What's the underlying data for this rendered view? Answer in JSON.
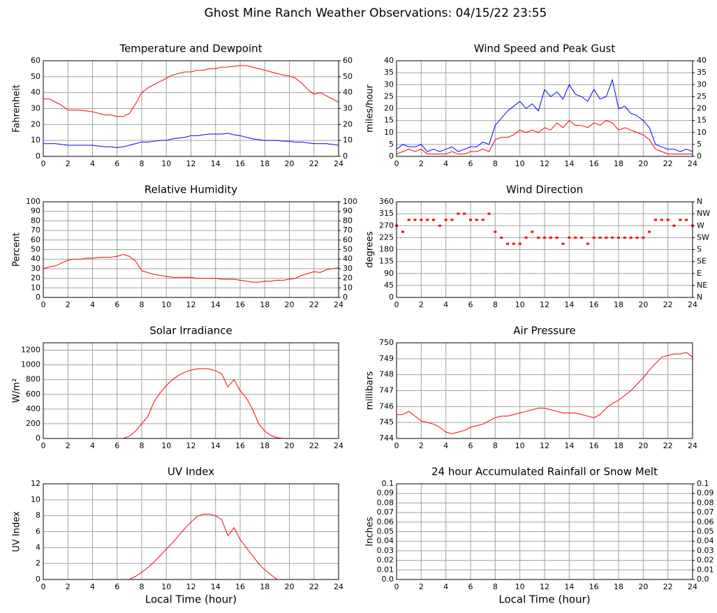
{
  "page_title": "Ghost Mine Ranch Weather Observations: 04/15/22 23:55",
  "chart_data": [
    {
      "type": "line",
      "title": "Temperature and Dewpoint",
      "ylabel": "Fahrenheit",
      "x": [
        0,
        0.5,
        1,
        1.5,
        2,
        2.5,
        3,
        3.5,
        4,
        4.5,
        5,
        5.5,
        6,
        6.5,
        7,
        7.5,
        8,
        8.5,
        9,
        9.5,
        10,
        10.5,
        11,
        11.5,
        12,
        12.5,
        13,
        13.5,
        14,
        14.5,
        15,
        15.5,
        16,
        16.5,
        17,
        17.5,
        18,
        18.5,
        19,
        19.5,
        20,
        20.5,
        21,
        21.5,
        22,
        22.5,
        23,
        23.5,
        24
      ],
      "xlim": [
        0,
        24
      ],
      "xticks": [
        0,
        2,
        4,
        6,
        8,
        10,
        12,
        14,
        16,
        18,
        20,
        22,
        24
      ],
      "ylim": [
        0,
        60
      ],
      "yticks": [
        0,
        10,
        20,
        30,
        40,
        50,
        60
      ],
      "y2lim": [
        0,
        60
      ],
      "y2ticks": [
        0,
        10,
        20,
        30,
        40,
        50,
        60
      ],
      "grid": true,
      "series": [
        {
          "color": "#ff0000",
          "values": [
            36,
            36,
            34,
            32,
            29,
            29,
            29,
            28.5,
            28,
            27,
            26,
            26,
            25,
            25,
            27,
            33,
            40,
            43,
            45,
            47,
            49,
            51,
            52,
            53,
            53,
            54,
            54,
            55,
            55,
            56,
            56,
            56.5,
            57,
            57,
            56,
            55,
            54,
            53,
            52,
            51,
            50.5,
            49,
            46,
            42,
            39,
            40,
            38,
            36,
            34
          ]
        },
        {
          "color": "#0000ff",
          "values": [
            8,
            8,
            8,
            7.5,
            7,
            7,
            7,
            7,
            7,
            6.5,
            6,
            6,
            5.5,
            6,
            7,
            8,
            9,
            9,
            9.5,
            10,
            10,
            11,
            11.5,
            12,
            13,
            13,
            13.5,
            14,
            14,
            14,
            14.5,
            13.5,
            13,
            12,
            11,
            10.5,
            10,
            10,
            10,
            9.5,
            9.5,
            9,
            9,
            8.5,
            8,
            8,
            8,
            7.5,
            7
          ]
        }
      ]
    },
    {
      "type": "line",
      "title": "Wind Speed and Peak Gust",
      "ylabel": "miles/hour",
      "x": [
        0,
        0.5,
        1,
        1.5,
        2,
        2.5,
        3,
        3.5,
        4,
        4.5,
        5,
        5.5,
        6,
        6.5,
        7,
        7.5,
        8,
        8.5,
        9,
        9.5,
        10,
        10.5,
        11,
        11.5,
        12,
        12.5,
        13,
        13.5,
        14,
        14.5,
        15,
        15.5,
        16,
        16.5,
        17,
        17.5,
        18,
        18.5,
        19,
        19.5,
        20,
        20.5,
        21,
        21.5,
        22,
        22.5,
        23,
        23.5,
        24
      ],
      "xlim": [
        0,
        24
      ],
      "xticks": [
        0,
        2,
        4,
        6,
        8,
        10,
        12,
        14,
        16,
        18,
        20,
        22,
        24
      ],
      "ylim": [
        0,
        40
      ],
      "yticks": [
        0,
        5,
        10,
        15,
        20,
        25,
        30,
        35,
        40
      ],
      "y2lim": [
        0,
        40
      ],
      "y2ticks": [
        0,
        5,
        10,
        15,
        20,
        25,
        30,
        35,
        40
      ],
      "grid": true,
      "series": [
        {
          "color": "#0000ff",
          "values": [
            3,
            5,
            4,
            4,
            5,
            2,
            3,
            2,
            3,
            4,
            2,
            3,
            4,
            4,
            6,
            5,
            13,
            16,
            19,
            21,
            23,
            20,
            22,
            19,
            28,
            25,
            27,
            24,
            30,
            26,
            25,
            23,
            28,
            24,
            25,
            32,
            20,
            21,
            18,
            17,
            15,
            12,
            5,
            4,
            3,
            3,
            2,
            3,
            2
          ]
        },
        {
          "color": "#ff0000",
          "values": [
            1,
            2,
            3,
            2,
            3,
            1,
            1,
            1,
            1,
            2,
            1,
            1,
            2,
            2,
            3,
            2,
            7,
            8,
            8,
            9,
            11,
            10,
            11,
            10,
            12,
            11,
            14,
            12,
            15,
            13,
            13,
            12,
            14,
            13,
            15,
            14,
            11,
            12,
            11,
            10,
            9,
            7,
            3,
            2,
            1,
            1,
            1,
            1,
            1
          ]
        }
      ]
    },
    {
      "type": "line",
      "title": "Relative Humidity",
      "ylabel": "Percent",
      "x": [
        0,
        0.5,
        1,
        1.5,
        2,
        2.5,
        3,
        3.5,
        4,
        4.5,
        5,
        5.5,
        6,
        6.5,
        7,
        7.5,
        8,
        8.5,
        9,
        9.5,
        10,
        10.5,
        11,
        11.5,
        12,
        12.5,
        13,
        13.5,
        14,
        14.5,
        15,
        15.5,
        16,
        16.5,
        17,
        17.5,
        18,
        18.5,
        19,
        19.5,
        20,
        20.5,
        21,
        21.5,
        22,
        22.5,
        23,
        23.5,
        24
      ],
      "xlim": [
        0,
        24
      ],
      "xticks": [
        0,
        2,
        4,
        6,
        8,
        10,
        12,
        14,
        16,
        18,
        20,
        22,
        24
      ],
      "ylim": [
        0,
        100
      ],
      "yticks": [
        0,
        10,
        20,
        30,
        40,
        50,
        60,
        70,
        80,
        90,
        100
      ],
      "y2lim": [
        0,
        100
      ],
      "y2ticks": [
        0,
        10,
        20,
        30,
        40,
        50,
        60,
        70,
        80,
        90,
        100
      ],
      "grid": true,
      "series": [
        {
          "color": "#ff0000",
          "values": [
            30,
            32,
            33,
            36,
            39,
            40,
            40,
            41,
            41,
            42,
            42,
            42,
            43,
            45,
            43,
            38,
            28,
            26,
            24,
            23,
            22,
            21,
            21,
            21,
            21,
            20,
            20,
            20,
            20,
            19,
            19,
            19,
            18,
            17,
            16,
            16,
            17,
            17,
            18,
            18,
            19,
            20,
            23,
            25,
            27,
            26,
            29,
            30,
            31
          ]
        }
      ]
    },
    {
      "type": "scatter",
      "title": "Wind Direction",
      "ylabel": "degrees",
      "x": [
        0,
        0.5,
        1,
        1.5,
        2,
        2.5,
        3,
        3.5,
        4,
        4.5,
        5,
        5.5,
        6,
        6.5,
        7,
        7.5,
        8,
        8.5,
        9,
        9.5,
        10,
        10.5,
        11,
        11.5,
        12,
        12.5,
        13,
        13.5,
        14,
        14.5,
        15,
        15.5,
        16,
        16.5,
        17,
        17.5,
        18,
        18.5,
        19,
        19.5,
        20,
        20.5,
        21,
        21.5,
        22,
        22.5,
        23,
        23.5,
        24
      ],
      "xlim": [
        0,
        24
      ],
      "xticks": [
        0,
        2,
        4,
        6,
        8,
        10,
        12,
        14,
        16,
        18,
        20,
        22,
        24
      ],
      "ylim": [
        0,
        360
      ],
      "yticks": [
        0,
        45,
        90,
        135,
        180,
        225,
        270,
        315,
        360
      ],
      "y2lim": [
        0,
        360
      ],
      "y2ticks": [
        {
          "value": 0,
          "label": "N"
        },
        {
          "value": 45,
          "label": "NE"
        },
        {
          "value": 90,
          "label": "E"
        },
        {
          "value": 135,
          "label": "SE"
        },
        {
          "value": 180,
          "label": "S"
        },
        {
          "value": 225,
          "label": "SW"
        },
        {
          "value": 270,
          "label": "W"
        },
        {
          "value": 315,
          "label": "NW"
        },
        {
          "value": 360,
          "label": "N"
        }
      ],
      "grid": true,
      "series": [
        {
          "color": "#ff0000",
          "values": [
            270,
            247,
            292,
            292,
            292,
            292,
            292,
            270,
            292,
            292,
            315,
            315,
            292,
            292,
            292,
            315,
            247,
            225,
            202,
            202,
            202,
            225,
            247,
            225,
            225,
            225,
            225,
            202,
            225,
            225,
            225,
            202,
            225,
            225,
            225,
            225,
            225,
            225,
            225,
            225,
            225,
            247,
            292,
            292,
            292,
            270,
            292,
            292,
            270
          ]
        }
      ]
    },
    {
      "type": "line",
      "title": "Solar Irradiance",
      "ylabel": "W/m²",
      "x": [
        0,
        0.5,
        1,
        1.5,
        2,
        2.5,
        3,
        3.5,
        4,
        4.5,
        5,
        5.5,
        6,
        6.5,
        7,
        7.5,
        8,
        8.5,
        9,
        9.5,
        10,
        10.5,
        11,
        11.5,
        12,
        12.5,
        13,
        13.5,
        14,
        14.5,
        15,
        15.5,
        16,
        16.5,
        17,
        17.5,
        18,
        18.5,
        19,
        19.5,
        20,
        20.5,
        21,
        21.5,
        22,
        22.5,
        23,
        23.5,
        24
      ],
      "xlim": [
        0,
        24
      ],
      "xticks": [
        0,
        2,
        4,
        6,
        8,
        10,
        12,
        14,
        16,
        18,
        20,
        22,
        24
      ],
      "ylim": [
        0,
        1300
      ],
      "yticks": [
        0,
        200,
        400,
        600,
        800,
        1000,
        1200
      ],
      "grid": true,
      "series": [
        {
          "color": "#ff0000",
          "values": [
            0,
            0,
            0,
            0,
            0,
            0,
            0,
            0,
            0,
            0,
            0,
            0,
            0,
            0,
            30,
            100,
            200,
            300,
            500,
            620,
            720,
            800,
            860,
            900,
            930,
            945,
            950,
            945,
            920,
            880,
            700,
            800,
            650,
            550,
            400,
            200,
            100,
            40,
            10,
            0,
            0,
            0,
            0,
            0,
            0,
            0,
            0,
            0,
            0
          ]
        }
      ]
    },
    {
      "type": "line",
      "title": "Air Pressure",
      "ylabel": "millibars",
      "x": [
        0,
        0.5,
        1,
        1.5,
        2,
        2.5,
        3,
        3.5,
        4,
        4.5,
        5,
        5.5,
        6,
        6.5,
        7,
        7.5,
        8,
        8.5,
        9,
        9.5,
        10,
        10.5,
        11,
        11.5,
        12,
        12.5,
        13,
        13.5,
        14,
        14.5,
        15,
        15.5,
        16,
        16.5,
        17,
        17.5,
        18,
        18.5,
        19,
        19.5,
        20,
        20.5,
        21,
        21.5,
        22,
        22.5,
        23,
        23.5,
        24
      ],
      "xlim": [
        0,
        24
      ],
      "xticks": [
        0,
        2,
        4,
        6,
        8,
        10,
        12,
        14,
        16,
        18,
        20,
        22,
        24
      ],
      "ylim": [
        744,
        750
      ],
      "yticks": [
        744,
        745,
        746,
        747,
        748,
        749,
        750
      ],
      "grid": true,
      "series": [
        {
          "color": "#ff0000",
          "values": [
            745.5,
            745.5,
            745.7,
            745.4,
            745.1,
            745.0,
            744.9,
            744.7,
            744.4,
            744.3,
            744.4,
            744.5,
            744.7,
            744.8,
            744.9,
            745.1,
            745.3,
            745.4,
            745.4,
            745.5,
            745.6,
            745.7,
            745.8,
            745.9,
            745.9,
            745.8,
            745.7,
            745.6,
            745.6,
            745.6,
            745.5,
            745.4,
            745.3,
            745.5,
            745.9,
            746.2,
            746.4,
            746.7,
            747.0,
            747.4,
            747.8,
            748.3,
            748.7,
            749.1,
            749.2,
            749.3,
            749.3,
            749.4,
            749.1
          ]
        }
      ]
    },
    {
      "type": "line",
      "title": "UV Index",
      "ylabel": "UV Index",
      "xlabel": "Local Time (hour)",
      "x": [
        0,
        0.5,
        1,
        1.5,
        2,
        2.5,
        3,
        3.5,
        4,
        4.5,
        5,
        5.5,
        6,
        6.5,
        7,
        7.5,
        8,
        8.5,
        9,
        9.5,
        10,
        10.5,
        11,
        11.5,
        12,
        12.5,
        13,
        13.5,
        14,
        14.5,
        15,
        15.5,
        16,
        16.5,
        17,
        17.5,
        18,
        18.5,
        19,
        19.5,
        20,
        20.5,
        21,
        21.5,
        22,
        22.5,
        23,
        23.5,
        24
      ],
      "xlim": [
        0,
        24
      ],
      "xticks": [
        0,
        2,
        4,
        6,
        8,
        10,
        12,
        14,
        16,
        18,
        20,
        22,
        24
      ],
      "ylim": [
        0,
        12
      ],
      "yticks": [
        0,
        2,
        4,
        6,
        8,
        10,
        12
      ],
      "grid": true,
      "series": [
        {
          "color": "#ff0000",
          "values": [
            0,
            0,
            0,
            0,
            0,
            0,
            0,
            0,
            0,
            0,
            0,
            0,
            0,
            0,
            0,
            0.4,
            0.9,
            1.5,
            2.2,
            3.0,
            3.8,
            4.6,
            5.5,
            6.4,
            7.2,
            7.9,
            8.2,
            8.2,
            8.0,
            7.5,
            5.5,
            6.5,
            5.0,
            4.0,
            3.0,
            2.0,
            1.2,
            0.6,
            0,
            0,
            0,
            0,
            0,
            0,
            0,
            0,
            0,
            0,
            0
          ]
        }
      ]
    },
    {
      "type": "line",
      "title": "24 hour Accumulated Rainfall or Snow Melt",
      "ylabel": "Inches",
      "xlabel": "Local Time (hour)",
      "x": [
        0,
        24
      ],
      "xlim": [
        0,
        24
      ],
      "xticks": [
        0,
        2,
        4,
        6,
        8,
        10,
        12,
        14,
        16,
        18,
        20,
        22,
        24
      ],
      "ylim": [
        0,
        0.1
      ],
      "yticks": [
        {
          "value": 0,
          "label": "0.0"
        },
        0.01,
        0.02,
        0.03,
        0.04,
        0.05,
        0.06,
        0.07,
        0.08,
        0.09,
        0.1
      ],
      "y2lim": [
        0,
        0.1
      ],
      "y2ticks": [
        {
          "value": 0,
          "label": "0.0"
        },
        0.01,
        0.02,
        0.03,
        0.04,
        0.05,
        0.06,
        0.07,
        0.08,
        0.09,
        0.1
      ],
      "grid": true,
      "series": [
        {
          "color": "#ff0000",
          "values": [
            0,
            0
          ]
        }
      ]
    }
  ]
}
